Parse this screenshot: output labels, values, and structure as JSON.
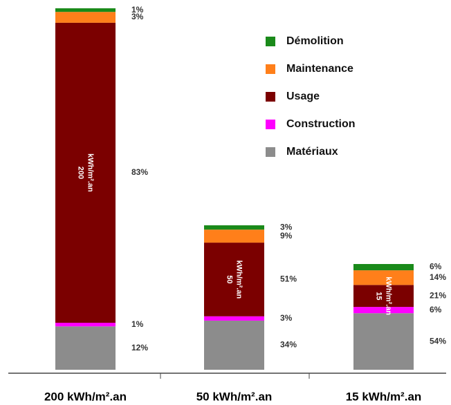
{
  "chart_data": {
    "type": "stacked_bar",
    "categories": [
      "200 kWh/m².an",
      "50 kWh/m².an",
      "15 kWh/m².an"
    ],
    "inner_labels": [
      [
        "200",
        "kWh/m².an"
      ],
      [
        "50",
        "kWh/m².an"
      ],
      [
        "15",
        "kWh/m².an"
      ]
    ],
    "series": [
      {
        "name": "Matériaux",
        "color": "#8c8c8c",
        "values": [
          12,
          34,
          54
        ],
        "value_labels": [
          "12%",
          "34%",
          "54%"
        ]
      },
      {
        "name": "Construction",
        "color": "#ff00ff",
        "values": [
          1,
          3,
          6
        ],
        "value_labels": [
          "1%",
          "3%",
          "6%"
        ]
      },
      {
        "name": "Usage",
        "color": "#7b0000",
        "values": [
          83,
          51,
          21
        ],
        "value_labels": [
          "83%",
          "51%",
          "21%"
        ]
      },
      {
        "name": "Maintenance",
        "color": "#ff7f1a",
        "values": [
          3,
          9,
          14
        ],
        "value_labels": [
          "3%",
          "9%",
          "14%"
        ]
      },
      {
        "name": "Démolition",
        "color": "#1a8a1a",
        "values": [
          1,
          3,
          6
        ],
        "value_labels": [
          "1%",
          "3%",
          "6%"
        ]
      }
    ],
    "legend": "upper right"
  }
}
